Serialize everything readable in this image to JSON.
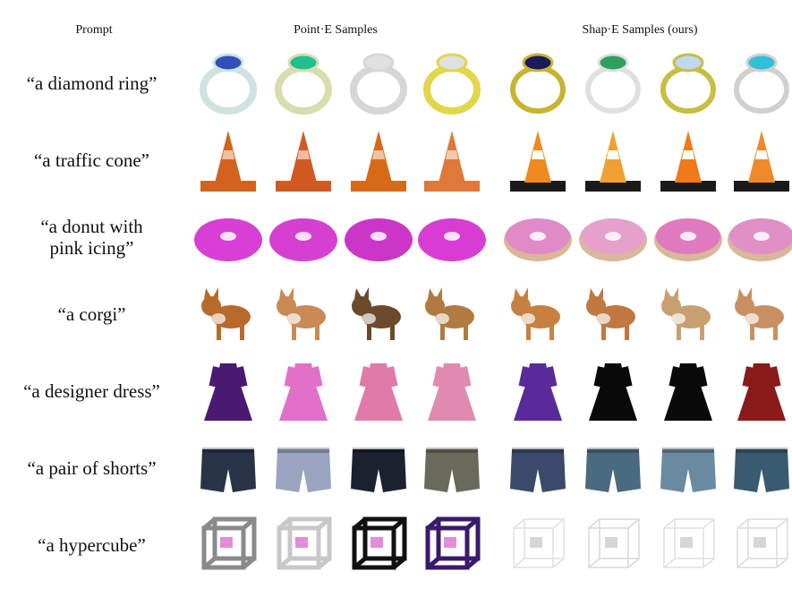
{
  "headers": {
    "prompt": "Prompt",
    "point_e": "Point·E Samples",
    "shap_e": "Shap·E Samples (ours)"
  },
  "rows": [
    {
      "prompt": "“a diamond ring”",
      "object": "ring"
    },
    {
      "prompt": "“a traffic cone”",
      "object": "cone"
    },
    {
      "prompt": "“a donut with pink icing”",
      "object": "donut"
    },
    {
      "prompt": "“a corgi”",
      "object": "corgi"
    },
    {
      "prompt": "“a designer dress”",
      "object": "dress"
    },
    {
      "prompt": "“a pair of shorts”",
      "object": "shorts"
    },
    {
      "prompt": "“a hypercube”",
      "object": "cube"
    }
  ],
  "point_e_colors": {
    "ring": [
      "#cfe3e0",
      "#d8dcae",
      "#d6d6d6",
      "#e2d64a"
    ],
    "cone": [
      "#d2631e",
      "#d05a22",
      "#d76a18",
      "#e0783a"
    ],
    "donut": [
      "#d83fd4",
      "#d640d0",
      "#cc36c8",
      "#d93cd2"
    ],
    "corgi": [
      "#b86a2a",
      "#c98a55",
      "#6a4a2a",
      "#b07a40"
    ],
    "dress": [
      "#4a1a70",
      "#e070c8",
      "#e07aa8",
      "#e08ab0"
    ],
    "shorts": [
      "#2a3448",
      "#9aa4c0",
      "#1a2230",
      "#6a6a5a"
    ],
    "cube": [
      "#8a8a8a",
      "#c8c8c8",
      "#111111",
      "#3a1a6a"
    ]
  },
  "shap_e_colors": {
    "ring": [
      "#c8b430",
      "#e0e0e0",
      "#c8be40",
      "#d0d0d0"
    ],
    "cone": [
      "#f08a20",
      "#f0a030",
      "#f07a18",
      "#f08a28"
    ],
    "donut": [
      "#e08ac8",
      "#e6a0cc",
      "#e07ac0",
      "#e090c6"
    ],
    "corgi": [
      "#c88040",
      "#c07840",
      "#c8a070",
      "#c89060"
    ],
    "dress": [
      "#5a2a9a",
      "#0a0a0a",
      "#0a0a0a",
      "#8a1a1a"
    ],
    "shorts": [
      "#3a4a6a",
      "#4a6a80",
      "#6a8aa0",
      "#3a5a70"
    ],
    "cube": [
      "#e0e0e0",
      "#d8d8d8",
      "#e0e0e0",
      "#dcdcdc"
    ]
  },
  "accent_colors": {
    "ring_stones": [
      "#3050b8",
      "#20c090",
      "#e0e0e0",
      "#e0e0e0",
      "#1a1a5a",
      "#30a060",
      "#c0d8f0",
      "#30c0d8"
    ],
    "cone_stripe": "#ffffff",
    "cone_base_shap": "#1a1a1a",
    "donut_dough": "#d8b898"
  }
}
